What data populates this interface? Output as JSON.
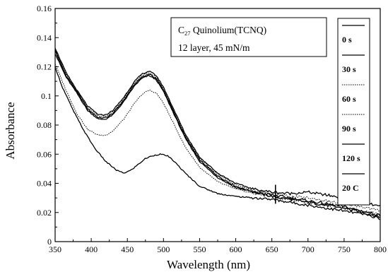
{
  "chart_data": {
    "type": "line",
    "title": "",
    "xlabel": "Wavelength (nm)",
    "ylabel": "Absorbance",
    "xlim": [
      350,
      800
    ],
    "ylim": [
      0,
      0.16
    ],
    "x_ticks": [
      "350",
      "400",
      "450",
      "500",
      "550",
      "600",
      "650",
      "700",
      "750",
      "800"
    ],
    "y_ticks": [
      "0",
      "0.02",
      "0.04",
      "0.06",
      "0.08",
      "0.1",
      "0.12",
      "0.14",
      "0.16"
    ],
    "annotation": {
      "line1_prefix": "C",
      "line1_subscript": "27",
      "line1_suffix": " Quinolium(TCNQ)",
      "line2": "12 layer,  45 mN/m"
    },
    "legend_position": "right",
    "series": [
      {
        "name": "0 s",
        "style": "solid",
        "x": [
          350,
          365,
          380,
          395,
          410,
          420,
          430,
          445,
          460,
          470,
          480,
          490,
          500,
          515,
          530,
          550,
          575,
          600,
          625,
          650,
          675,
          700,
          725,
          750,
          775,
          800
        ],
        "y": [
          0.131,
          0.114,
          0.103,
          0.091,
          0.085,
          0.085,
          0.088,
          0.097,
          0.108,
          0.113,
          0.115,
          0.112,
          0.104,
          0.088,
          0.072,
          0.056,
          0.045,
          0.038,
          0.034,
          0.031,
          0.029,
          0.027,
          0.025,
          0.023,
          0.02,
          0.017
        ]
      },
      {
        "name": "30 s",
        "style": "solid",
        "x": [
          350,
          365,
          380,
          395,
          410,
          420,
          430,
          445,
          460,
          470,
          480,
          490,
          500,
          515,
          530,
          550,
          575,
          600,
          625,
          650,
          675,
          700,
          725,
          750,
          775,
          800
        ],
        "y": [
          0.129,
          0.113,
          0.102,
          0.09,
          0.084,
          0.084,
          0.087,
          0.096,
          0.107,
          0.112,
          0.114,
          0.111,
          0.103,
          0.087,
          0.071,
          0.055,
          0.044,
          0.037,
          0.034,
          0.032,
          0.03,
          0.028,
          0.026,
          0.024,
          0.021,
          0.018
        ]
      },
      {
        "name": "60 s",
        "style": "dotted",
        "x": [
          350,
          365,
          380,
          395,
          410,
          420,
          430,
          445,
          460,
          470,
          480,
          490,
          500,
          515,
          530,
          550,
          575,
          600,
          625,
          650,
          675,
          700,
          725,
          750,
          775,
          800
        ],
        "y": [
          0.122,
          0.104,
          0.088,
          0.077,
          0.073,
          0.073,
          0.076,
          0.084,
          0.095,
          0.101,
          0.104,
          0.102,
          0.095,
          0.08,
          0.065,
          0.051,
          0.041,
          0.036,
          0.033,
          0.031,
          0.029,
          0.027,
          0.025,
          0.023,
          0.021,
          0.019
        ]
      },
      {
        "name": "90 s",
        "style": "dotted",
        "x": [
          350,
          365,
          380,
          395,
          410,
          420,
          430,
          445,
          460,
          470,
          480,
          490,
          500,
          515,
          530,
          550,
          575,
          600,
          625,
          650,
          675,
          700,
          725,
          750,
          775,
          800
        ],
        "y": [
          0.132,
          0.115,
          0.104,
          0.092,
          0.086,
          0.086,
          0.089,
          0.098,
          0.109,
          0.114,
          0.116,
          0.113,
          0.105,
          0.089,
          0.073,
          0.057,
          0.046,
          0.039,
          0.035,
          0.033,
          0.031,
          0.03,
          0.028,
          0.026,
          0.024,
          0.021
        ]
      },
      {
        "name": "120 s",
        "style": "solid",
        "x": [
          350,
          365,
          380,
          395,
          410,
          420,
          430,
          445,
          460,
          470,
          480,
          490,
          500,
          515,
          530,
          550,
          575,
          600,
          625,
          650,
          675,
          700,
          725,
          750,
          775,
          800
        ],
        "y": [
          0.133,
          0.116,
          0.104,
          0.093,
          0.087,
          0.087,
          0.09,
          0.099,
          0.11,
          0.115,
          0.117,
          0.114,
          0.106,
          0.09,
          0.074,
          0.058,
          0.047,
          0.04,
          0.036,
          0.034,
          0.033,
          0.034,
          0.032,
          0.03,
          0.027,
          0.024
        ]
      },
      {
        "name": "20 C",
        "style": "solid",
        "x": [
          350,
          360,
          375,
          390,
          405,
          420,
          435,
          445,
          455,
          465,
          475,
          485,
          495,
          505,
          515,
          530,
          550,
          575,
          600,
          625,
          650,
          675,
          700,
          725,
          750,
          775,
          800
        ],
        "y": [
          0.12,
          0.106,
          0.09,
          0.076,
          0.064,
          0.055,
          0.049,
          0.047,
          0.049,
          0.053,
          0.057,
          0.059,
          0.06,
          0.059,
          0.055,
          0.047,
          0.038,
          0.033,
          0.031,
          0.03,
          0.029,
          0.027,
          0.025,
          0.023,
          0.021,
          0.019,
          0.016
        ]
      }
    ]
  }
}
